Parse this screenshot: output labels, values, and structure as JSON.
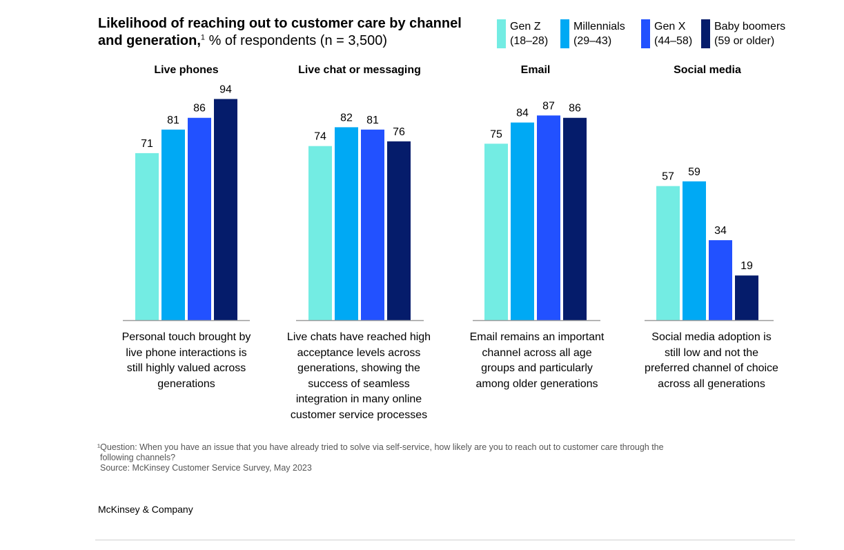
{
  "title_bold": "Likelihood of reaching out to customer care by channel and generation,",
  "title_footnote_mark": "1",
  "title_subtitle": "% of respondents (n = 3,500)",
  "legend": [
    {
      "line1": "Gen Z",
      "line2": "(18–28)",
      "color": "#73ece3"
    },
    {
      "line1": "Millennials",
      "line2": "(29–43)",
      "color": "#00a9f4"
    },
    {
      "line1": "Gen X",
      "line2": "(44–58)",
      "color": "#2251ff"
    },
    {
      "line1": "Baby boomers",
      "line2": "(59 or older)",
      "color": "#051c6b"
    }
  ],
  "chart_data": {
    "type": "bar",
    "series": [
      {
        "name": "Gen Z (18–28)",
        "color": "#73ece3"
      },
      {
        "name": "Millennials (29–43)",
        "color": "#00a9f4"
      },
      {
        "name": "Gen X (44–58)",
        "color": "#2251ff"
      },
      {
        "name": "Baby boomers (59 or older)",
        "color": "#051c6b"
      }
    ],
    "panels": [
      {
        "title": "Live phones",
        "values": [
          71,
          81,
          86,
          94
        ],
        "caption": "Personal touch brought by live phone interactions is still highly valued across generations"
      },
      {
        "title": "Live chat or messaging",
        "values": [
          74,
          82,
          81,
          76
        ],
        "caption": "Live chats have reached high acceptance levels across generations, showing the success of seamless integration in many online customer service processes"
      },
      {
        "title": "Email",
        "values": [
          75,
          84,
          87,
          86
        ],
        "caption": "Email remains an important channel across all age groups and particularly among older generations"
      },
      {
        "title": "Social media",
        "values": [
          57,
          59,
          34,
          19
        ],
        "caption": "Social media adoption is still low and not the preferred channel of choice across all generations"
      }
    ],
    "ylim": [
      0,
      100
    ],
    "grid": false,
    "legend_position": "top-right"
  },
  "footnote_line1": "¹Question: When you have an issue that you have already tried to solve via self-service, how likely are you to reach out to customer care through the",
  "footnote_line2": "following channels?",
  "source": "Source: McKinsey Customer Service Survey, May 2023",
  "brand": "McKinsey & Company"
}
